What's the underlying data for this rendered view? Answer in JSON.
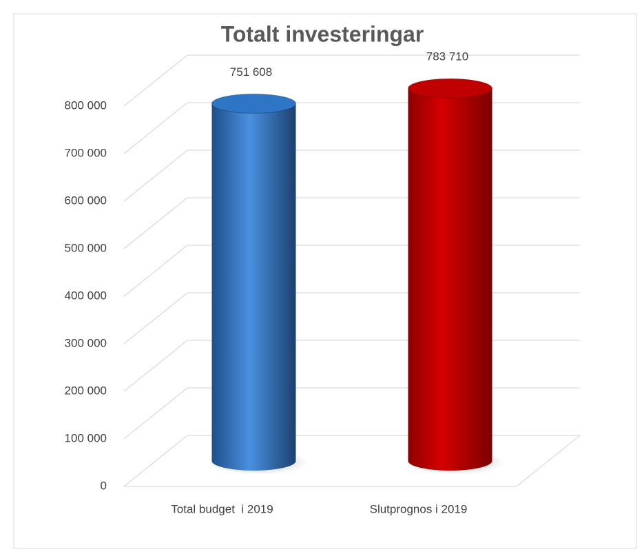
{
  "chart_data": {
    "type": "bar3d",
    "title": "Totalt investeringar",
    "categories": [
      "Total budget  i 2019",
      "Slutprognos i 2019"
    ],
    "values": [
      751608,
      783710
    ],
    "value_labels": [
      "751 608",
      "783 710"
    ],
    "colors": [
      "#2e75c6",
      "#c00000"
    ],
    "ylim": [
      0,
      800000
    ],
    "yticks": [
      0,
      {
        "value": 100000,
        "label": "100 000"
      },
      {
        "value": 200000,
        "label": "200 000"
      },
      {
        "value": 300000,
        "label": "300 000"
      },
      {
        "value": 400000,
        "label": "400 000"
      },
      {
        "value": 500000,
        "label": "500 000"
      },
      {
        "value": 600000,
        "label": "600 000"
      },
      {
        "value": 700000,
        "label": "700 000"
      },
      {
        "value": 800000,
        "label": "800 000"
      }
    ],
    "grid": true
  }
}
